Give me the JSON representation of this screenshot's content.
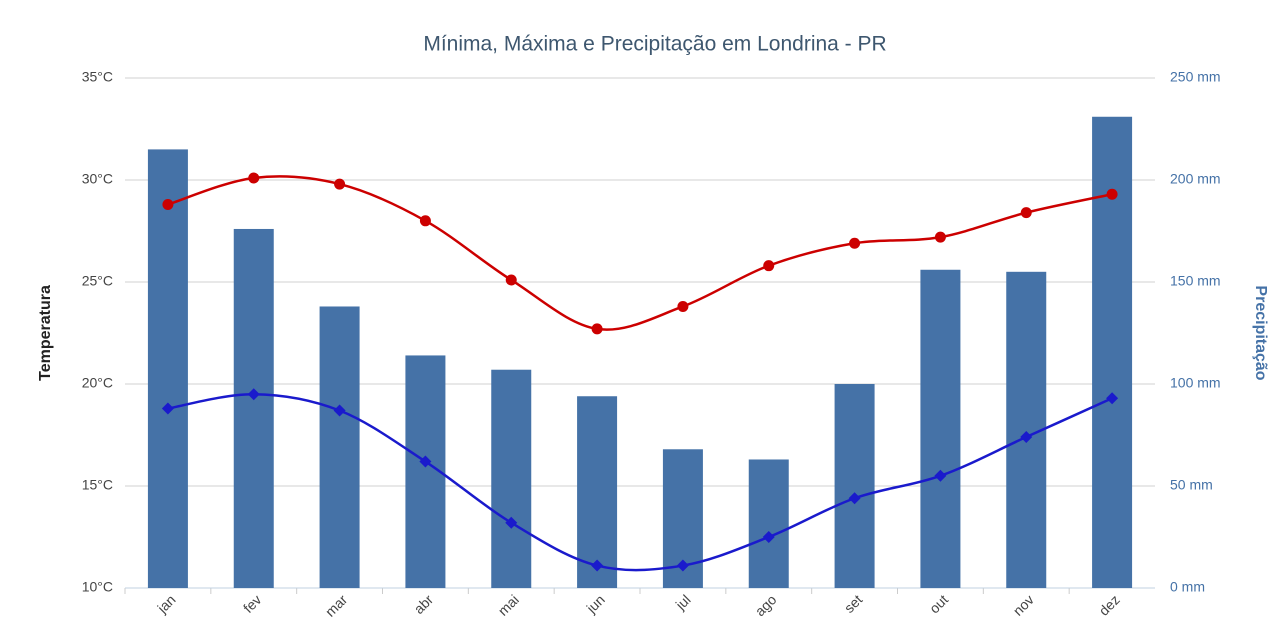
{
  "chart_data": {
    "type": "bar",
    "title": "Mínima, Máxima e Precipitação em Londrina - PR",
    "ylabel": "Temperatura",
    "y2label": "Precipitação",
    "categories": [
      "jan",
      "fev",
      "mar",
      "abr",
      "mai",
      "jun",
      "jul",
      "ago",
      "set",
      "out",
      "nov",
      "dez"
    ],
    "series": [
      {
        "type": "bar",
        "axis": "y2",
        "color": "#4572a7",
        "values": [
          215,
          176,
          138,
          114,
          107,
          94,
          68,
          63,
          100,
          156,
          155,
          231
        ]
      },
      {
        "type": "line",
        "color": "#cc0000",
        "values": [
          28.8,
          30.1,
          29.8,
          28.0,
          25.1,
          22.7,
          23.8,
          25.8,
          26.9,
          27.2,
          28.4,
          29.3
        ]
      },
      {
        "type": "line",
        "color": "#1a1acc",
        "values": [
          18.8,
          19.5,
          18.7,
          16.2,
          13.2,
          11.1,
          11.1,
          12.5,
          14.4,
          15.5,
          17.4,
          19.3
        ]
      }
    ],
    "ylim": [
      10,
      35
    ],
    "yticks": [
      {
        "value": 10,
        "label": "10°C"
      },
      {
        "value": 15,
        "label": "15°C"
      },
      {
        "value": 20,
        "label": "20°C"
      },
      {
        "value": 25,
        "label": "25°C"
      },
      {
        "value": 30,
        "label": "30°C"
      },
      {
        "value": 35,
        "label": "35°C"
      }
    ],
    "y2lim": [
      0,
      250
    ],
    "y2ticks": [
      {
        "value": 0,
        "label": "0 mm"
      },
      {
        "value": 50,
        "label": "50 mm"
      },
      {
        "value": 100,
        "label": "100 mm"
      },
      {
        "value": 150,
        "label": "150 mm"
      },
      {
        "value": 200,
        "label": "200 mm"
      },
      {
        "value": 250,
        "label": "250 mm"
      }
    ],
    "grid": true
  }
}
